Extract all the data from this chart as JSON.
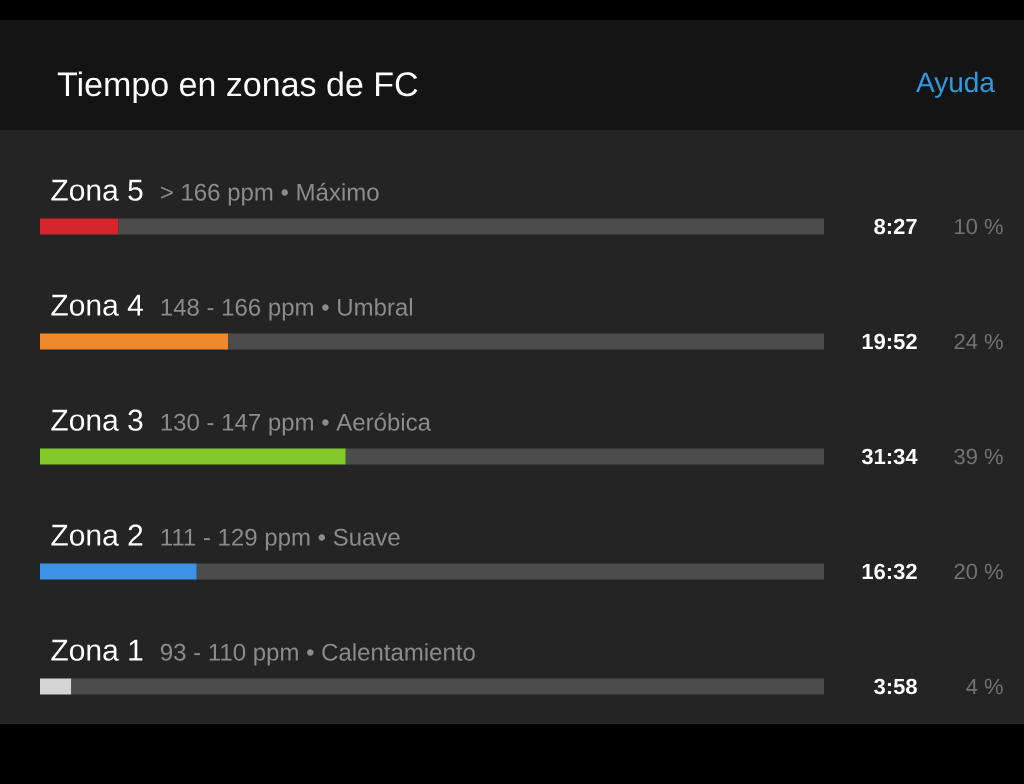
{
  "chart_data": {
    "type": "bar",
    "orientation": "horizontal",
    "stacked": true,
    "title": "Tiempo en zonas de FC",
    "categories": [
      "Zona 5",
      "Zona 4",
      "Zona 3",
      "Zona 2",
      "Zona 1"
    ],
    "series": [
      {
        "colors": [
          "#d7262b",
          "#f0892c",
          "#83c92a",
          "#3c92e6",
          "#d4d4d4"
        ],
        "values": [
          10,
          24,
          39,
          20,
          4
        ],
        "value_labels": [
          "10 %",
          "24 %",
          "39 %",
          "20 %",
          "4 %"
        ]
      },
      {
        "color": "#4c4c4c",
        "values": [
          90,
          76,
          61,
          80,
          96
        ]
      }
    ],
    "xlim": [
      0,
      100
    ],
    "annotations": [
      {
        "text": "> 166 ppm • Máximo",
        "y": "Zona 5"
      },
      {
        "text": "148 - 166 ppm • Umbral",
        "y": "Zona 4"
      },
      {
        "text": "130 - 147 ppm • Aeróbica",
        "y": "Zona 3"
      },
      {
        "text": "111 - 129 ppm • Suave",
        "y": "Zona 2"
      },
      {
        "text": "93 - 110 ppm • Calentamiento",
        "y": "Zona 1"
      },
      "8:27",
      "19:52",
      "31:34",
      "16:32",
      "3:58",
      "Ayuda"
    ]
  }
}
